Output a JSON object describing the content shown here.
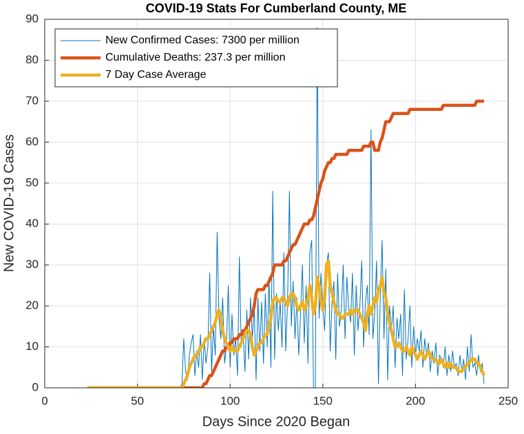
{
  "chart_data": {
    "type": "line",
    "title": "COVID-19 Stats For Cumberland County, ME",
    "xlabel": "Days Since 2020 Began",
    "ylabel": "New COVID-19 Cases",
    "xlim": [
      0,
      250
    ],
    "xticks": [
      0,
      50,
      100,
      150,
      200,
      250
    ],
    "ylim": [
      0,
      90
    ],
    "yticks": [
      0,
      10,
      20,
      30,
      40,
      50,
      60,
      70,
      80,
      90
    ],
    "grid": true,
    "legend": "upper-left",
    "x": [
      23,
      24,
      25,
      26,
      27,
      28,
      29,
      30,
      31,
      32,
      33,
      34,
      35,
      36,
      37,
      38,
      39,
      40,
      41,
      42,
      43,
      44,
      45,
      46,
      47,
      48,
      49,
      50,
      51,
      52,
      53,
      54,
      55,
      56,
      57,
      58,
      59,
      60,
      61,
      62,
      63,
      64,
      65,
      66,
      67,
      68,
      69,
      70,
      71,
      72,
      73,
      74,
      75,
      76,
      77,
      78,
      79,
      80,
      81,
      82,
      83,
      84,
      85,
      86,
      87,
      88,
      89,
      90,
      91,
      92,
      93,
      94,
      95,
      96,
      97,
      98,
      99,
      100,
      101,
      102,
      103,
      104,
      105,
      106,
      107,
      108,
      109,
      110,
      111,
      112,
      113,
      114,
      115,
      116,
      117,
      118,
      119,
      120,
      121,
      122,
      123,
      124,
      125,
      126,
      127,
      128,
      129,
      130,
      131,
      132,
      133,
      134,
      135,
      136,
      137,
      138,
      139,
      140,
      141,
      142,
      143,
      144,
      145,
      146,
      147,
      148,
      149,
      150,
      151,
      152,
      153,
      154,
      155,
      156,
      157,
      158,
      159,
      160,
      161,
      162,
      163,
      164,
      165,
      166,
      167,
      168,
      169,
      170,
      171,
      172,
      173,
      174,
      175,
      176,
      177,
      178,
      179,
      180,
      181,
      182,
      183,
      184,
      185,
      186,
      187,
      188,
      189,
      190,
      191,
      192,
      193,
      194,
      195,
      196,
      197,
      198,
      199,
      200,
      201,
      202,
      203,
      204,
      205,
      206,
      207,
      208,
      209,
      210,
      211,
      212,
      213,
      214,
      215,
      216,
      217,
      218,
      219,
      220,
      221,
      222,
      223,
      224,
      225,
      226,
      227,
      228,
      229,
      230,
      231,
      232,
      233,
      234,
      235,
      236,
      237
    ],
    "series": [
      {
        "name": "New Confirmed Cases: 7300 per million",
        "color": "#0072BD",
        "width": 1,
        "values": [
          0,
          0,
          0,
          0,
          0,
          0,
          0,
          0,
          0,
          0,
          0,
          0,
          0,
          0,
          0,
          0,
          0,
          0,
          0,
          0,
          0,
          0,
          0,
          0,
          0,
          0,
          0,
          0,
          0,
          0,
          0,
          0,
          0,
          0,
          0,
          0,
          0,
          0,
          0,
          0,
          0,
          0,
          0,
          0,
          0,
          0,
          0,
          0,
          0,
          0,
          0,
          1,
          12,
          4,
          2,
          8,
          11,
          13,
          3,
          9,
          5,
          13,
          2,
          12,
          6,
          10,
          28,
          4,
          15,
          8,
          38,
          17,
          12,
          22,
          6,
          10,
          25,
          5,
          18,
          8,
          12,
          3,
          32,
          10,
          14,
          4,
          19,
          7,
          22,
          12,
          20,
          2,
          22,
          9,
          21,
          6,
          23,
          10,
          27,
          5,
          48,
          7,
          23,
          14,
          21,
          10,
          33,
          9,
          21,
          48,
          15,
          26,
          12,
          22,
          8,
          18,
          30,
          11,
          25,
          6,
          33,
          36,
          0,
          0,
          88,
          17,
          28,
          20,
          14,
          30,
          33,
          9,
          21,
          26,
          7,
          28,
          15,
          19,
          30,
          12,
          27,
          19,
          16,
          28,
          8,
          25,
          14,
          20,
          31,
          10,
          21,
          25,
          13,
          63,
          12,
          18,
          31,
          1,
          22,
          36,
          12,
          29,
          2,
          20,
          14,
          20,
          5,
          17,
          12,
          18,
          3,
          24,
          7,
          12,
          20,
          5,
          15,
          8,
          12,
          9,
          14,
          5,
          12,
          8,
          11,
          4,
          9,
          6,
          11,
          3,
          8,
          7,
          5,
          10,
          3,
          8,
          4,
          9,
          5,
          6,
          3,
          8,
          4,
          7,
          2,
          10,
          4,
          13,
          5,
          6,
          3,
          8,
          4,
          6,
          1
        ]
      },
      {
        "name": "Cumulative Deaths: 237.3 per million",
        "color": "#D95319",
        "width": 4.5,
        "values": [
          0,
          0,
          0,
          0,
          0,
          0,
          0,
          0,
          0,
          0,
          0,
          0,
          0,
          0,
          0,
          0,
          0,
          0,
          0,
          0,
          0,
          0,
          0,
          0,
          0,
          0,
          0,
          0,
          0,
          0,
          0,
          0,
          0,
          0,
          0,
          0,
          0,
          0,
          0,
          0,
          0,
          0,
          0,
          0,
          0,
          0,
          0,
          0,
          0,
          0,
          0,
          0,
          0,
          0,
          0,
          0,
          0,
          0,
          0,
          0,
          0,
          0,
          0,
          1,
          1,
          2,
          3,
          3,
          4,
          5,
          6,
          7,
          8,
          9,
          9,
          10,
          10,
          11,
          11,
          12,
          12,
          12,
          13,
          13,
          14,
          14,
          15,
          16,
          17,
          18,
          20,
          23,
          24,
          24,
          24,
          24,
          25,
          25,
          26,
          27,
          28,
          30,
          30,
          30,
          30,
          30,
          31,
          31,
          32,
          33,
          34,
          35,
          35,
          36,
          37,
          38,
          39,
          40,
          40,
          40,
          41,
          41,
          42,
          44,
          46,
          48,
          50,
          51,
          53,
          54,
          55,
          55,
          56,
          56,
          57,
          57,
          57,
          57,
          57,
          57,
          57,
          58,
          58,
          58,
          58,
          58,
          58,
          58,
          58,
          59,
          59,
          59,
          59,
          60,
          60,
          58,
          58,
          58,
          60,
          61,
          63,
          65,
          65,
          65,
          66,
          67,
          67,
          67,
          67,
          67,
          67,
          67,
          67,
          67,
          68,
          68,
          68,
          68,
          68,
          68,
          68,
          68,
          68,
          68,
          68,
          68,
          68,
          68,
          68,
          68,
          68,
          68,
          69,
          69,
          69,
          69,
          69,
          69,
          69,
          69,
          69,
          69,
          69,
          69,
          69,
          69,
          69,
          69,
          69,
          69,
          70,
          70,
          70,
          70,
          70
        ]
      },
      {
        "name": "7 Day Case Average",
        "color": "#EDB120",
        "width": 4.5,
        "values": [
          0,
          0,
          0,
          0,
          0,
          0,
          0,
          0,
          0,
          0,
          0,
          0,
          0,
          0,
          0,
          0,
          0,
          0,
          0,
          0,
          0,
          0,
          0,
          0,
          0,
          0,
          0,
          0,
          0,
          0,
          0,
          0,
          0,
          0,
          0,
          0,
          0,
          0,
          0,
          0,
          0,
          0,
          0,
          0,
          0,
          0,
          0,
          0,
          0,
          0,
          0,
          0,
          1,
          2,
          3,
          5,
          6,
          7,
          8,
          8,
          9,
          10,
          10,
          11,
          12,
          12,
          13,
          14,
          15,
          16,
          18,
          19,
          17,
          14,
          12,
          11,
          10,
          9,
          10,
          9,
          9,
          9,
          10,
          11,
          12,
          13,
          14,
          14,
          13,
          10,
          8,
          9,
          10,
          11,
          11,
          12,
          13,
          13,
          15,
          17,
          21,
          22,
          22,
          21,
          21,
          22,
          22,
          21,
          20,
          22,
          23,
          23,
          22,
          20,
          19,
          20,
          21,
          19,
          20,
          22,
          25,
          22,
          18,
          20,
          27,
          25,
          21,
          19,
          22,
          30,
          31,
          25,
          23,
          21,
          19,
          18,
          18,
          17,
          17,
          18,
          18,
          18,
          19,
          18,
          19,
          19,
          19,
          18,
          17,
          16,
          14,
          18,
          20,
          18,
          20,
          22,
          21,
          24,
          25,
          27,
          23,
          22,
          18,
          16,
          14,
          12,
          10,
          10,
          11,
          10,
          9,
          9,
          10,
          9,
          8,
          10,
          9,
          8,
          7,
          8,
          9,
          8,
          7,
          8,
          9,
          8,
          7,
          7,
          7,
          6,
          6,
          7,
          6,
          5,
          6,
          5,
          6,
          5,
          5,
          5,
          4,
          4,
          4,
          5,
          5,
          6,
          6,
          7,
          7,
          7,
          6,
          6,
          5,
          4,
          3
        ]
      }
    ]
  }
}
